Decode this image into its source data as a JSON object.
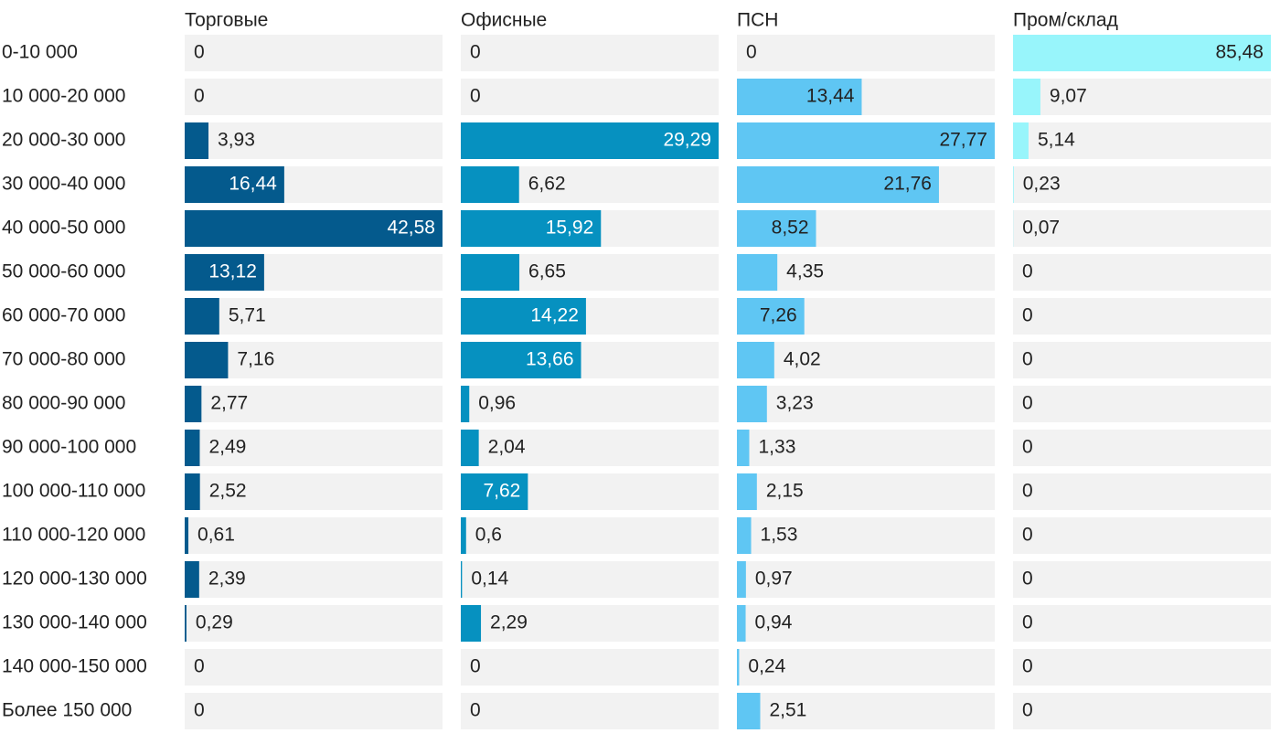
{
  "chart_data": {
    "type": "bar",
    "orientation": "horizontal",
    "layout": "small-multiples",
    "categories": [
      "0-10 000",
      "10 000-20 000",
      "20 000-30 000",
      "30 000-40 000",
      "40 000-50 000",
      "50 000-60 000",
      "60 000-70 000",
      "70 000-80 000",
      "80 000-90 000",
      "90 000-100 000",
      "100 000-110 000",
      "110 000-120 000",
      "120 000-130 000",
      "130 000-140 000",
      "140 000-150 000",
      "Более 150 000"
    ],
    "series": [
      {
        "name": "Торговые",
        "color": "#045a8d",
        "labels_inside_color": "#ffffff",
        "values": [
          0,
          0,
          3.93,
          16.44,
          42.58,
          13.12,
          5.71,
          7.16,
          2.77,
          2.49,
          2.52,
          0.61,
          2.39,
          0.29,
          0,
          0
        ],
        "value_labels": [
          "0",
          "0",
          "3,93",
          "16,44",
          "42,58",
          "13,12",
          "5,71",
          "7,16",
          "2,77",
          "2,49",
          "2,52",
          "0,61",
          "2,39",
          "0,29",
          "0",
          "0"
        ]
      },
      {
        "name": "Офисные",
        "color": "#0691c0",
        "labels_inside_color": "#ffffff",
        "values": [
          0,
          0,
          29.29,
          6.62,
          15.92,
          6.65,
          14.22,
          13.66,
          0.96,
          2.04,
          7.62,
          0.6,
          0.14,
          2.29,
          0,
          0
        ],
        "value_labels": [
          "0",
          "0",
          "29,29",
          "6,62",
          "15,92",
          "6,65",
          "14,22",
          "13,66",
          "0,96",
          "2,04",
          "7,62",
          "0,6",
          "0,14",
          "2,29",
          "0",
          "0"
        ]
      },
      {
        "name": "ПСН",
        "color": "#5fc6f3",
        "labels_inside_color": "#222222",
        "values": [
          0,
          13.44,
          27.77,
          21.76,
          8.52,
          4.35,
          7.26,
          4.02,
          3.23,
          1.33,
          2.15,
          1.53,
          0.97,
          0.94,
          0.24,
          2.51
        ],
        "value_labels": [
          "0",
          "13,44",
          "27,77",
          "21,76",
          "8,52",
          "4,35",
          "7,26",
          "4,02",
          "3,23",
          "1,33",
          "2,15",
          "1,53",
          "0,97",
          "0,94",
          "0,24",
          "2,51"
        ]
      },
      {
        "name": "Пром/склад",
        "color": "#98f5fb",
        "labels_inside_color": "#222222",
        "values": [
          85.48,
          9.07,
          5.14,
          0.23,
          0.07,
          0,
          0,
          0,
          0,
          0,
          0,
          0,
          0,
          0,
          0,
          0
        ],
        "value_labels": [
          "85,48",
          "9,07",
          "5,14",
          "0,23",
          "0,07",
          "0",
          "0",
          "0",
          "0",
          "0",
          "0",
          "0",
          "0",
          "0",
          "0",
          "0"
        ]
      }
    ],
    "track_color": "#f2f2f2",
    "text_color": "#222222",
    "grid": false,
    "legend": "none"
  }
}
